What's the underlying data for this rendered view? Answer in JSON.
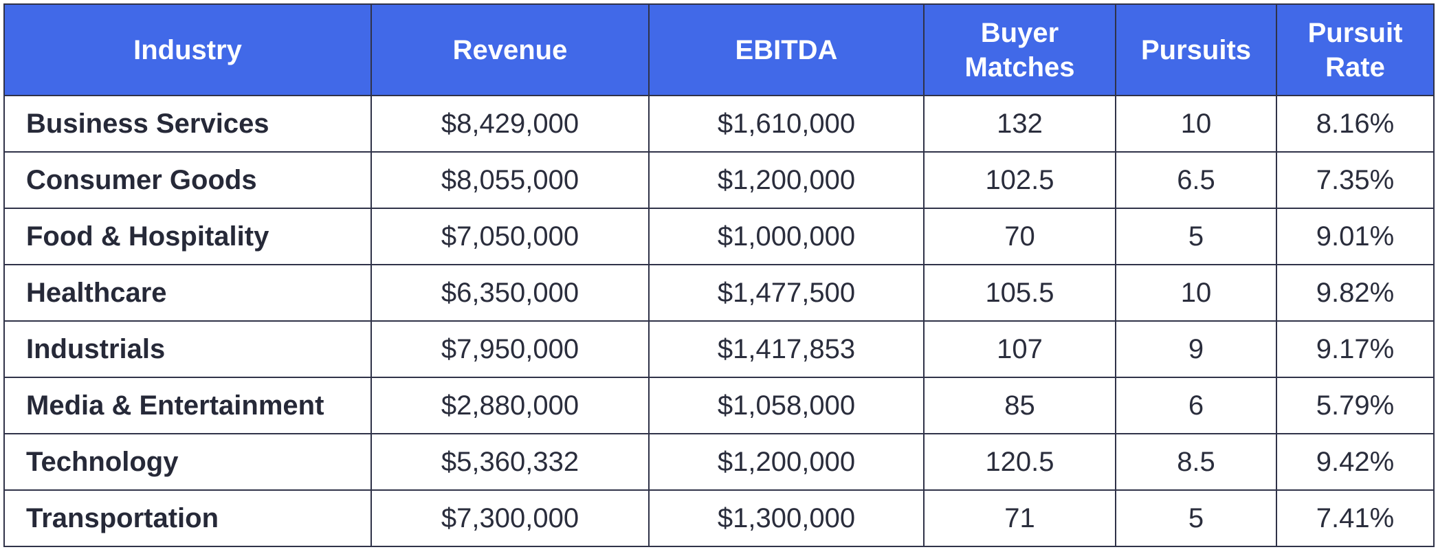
{
  "chart_data": {
    "type": "table",
    "columns": [
      "Industry",
      "Revenue",
      "EBITDA",
      "Buyer Matches",
      "Pursuits",
      "Pursuit Rate"
    ],
    "header_lines": [
      [
        "Industry"
      ],
      [
        "Revenue"
      ],
      [
        "EBITDA"
      ],
      [
        "Buyer",
        "Matches"
      ],
      [
        "Pursuits"
      ],
      [
        "Pursuit",
        "Rate"
      ]
    ],
    "rows": [
      [
        "Business Services",
        "$8,429,000",
        "$1,610,000",
        "132",
        "10",
        "8.16%"
      ],
      [
        "Consumer Goods",
        "$8,055,000",
        "$1,200,000",
        "102.5",
        "6.5",
        "7.35%"
      ],
      [
        "Food & Hospitality",
        "$7,050,000",
        "$1,000,000",
        "70",
        "5",
        "9.01%"
      ],
      [
        "Healthcare",
        "$6,350,000",
        "$1,477,500",
        "105.5",
        "10",
        "9.82%"
      ],
      [
        "Industrials",
        "$7,950,000",
        "$1,417,853",
        "107",
        "9",
        "9.17%"
      ],
      [
        "Media & Entertainment",
        "$2,880,000",
        "$1,058,000",
        "85",
        "6",
        "5.79%"
      ],
      [
        "Technology",
        "$5,360,332",
        "$1,200,000",
        "120.5",
        "8.5",
        "9.42%"
      ],
      [
        "Transportation",
        "$7,300,000",
        "$1,300,000",
        "71",
        "5",
        "7.41%"
      ]
    ],
    "colors": {
      "header_background": "#4169e8",
      "header_text": "#ffffff",
      "border": "#2f3248",
      "body_text": "#2a2d3c"
    }
  }
}
